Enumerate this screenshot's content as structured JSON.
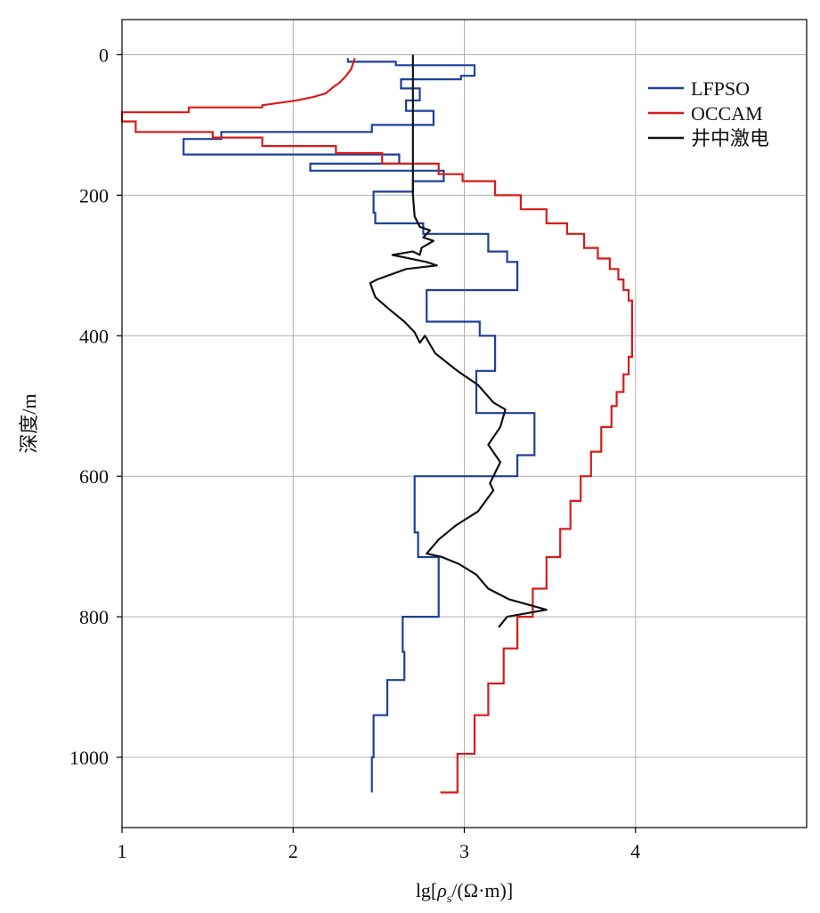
{
  "chart_data": {
    "type": "line",
    "xlabel": {
      "prefix": "lg[",
      "rho": "ρ",
      "sub": "s",
      "suffix": "/(Ω·m)]"
    },
    "ylabel": "深度/m",
    "xlim": [
      1,
      5
    ],
    "ylim": [
      1100,
      -50
    ],
    "y_inverted": true,
    "x_ticks": [
      1,
      2,
      3,
      4
    ],
    "x_tick_labels": [
      "1",
      "2",
      "3",
      "4"
    ],
    "y_ticks": [
      0,
      200,
      400,
      600,
      800,
      1000
    ],
    "y_tick_labels": [
      "0",
      "200",
      "400",
      "600",
      "800",
      "1000"
    ],
    "grid": true,
    "legend_position": "top-right",
    "series": [
      {
        "name": "LFPSO",
        "color": "#1f3f9a",
        "step": true,
        "points": [
          [
            2.32,
            5
          ],
          [
            2.32,
            10
          ],
          [
            2.6,
            10
          ],
          [
            2.6,
            15
          ],
          [
            3.06,
            15
          ],
          [
            3.06,
            30
          ],
          [
            2.98,
            30
          ],
          [
            2.98,
            35
          ],
          [
            2.63,
            35
          ],
          [
            2.63,
            48
          ],
          [
            2.74,
            48
          ],
          [
            2.74,
            65
          ],
          [
            2.66,
            65
          ],
          [
            2.66,
            80
          ],
          [
            2.82,
            80
          ],
          [
            2.82,
            100
          ],
          [
            2.46,
            100
          ],
          [
            2.46,
            110
          ],
          [
            1.58,
            110
          ],
          [
            1.58,
            120
          ],
          [
            1.36,
            120
          ],
          [
            1.36,
            142
          ],
          [
            2.62,
            142
          ],
          [
            2.62,
            155
          ],
          [
            2.1,
            155
          ],
          [
            2.1,
            165
          ],
          [
            2.88,
            165
          ],
          [
            2.88,
            180
          ],
          [
            2.7,
            180
          ],
          [
            2.7,
            195
          ],
          [
            2.47,
            195
          ],
          [
            2.47,
            225
          ],
          [
            2.48,
            225
          ],
          [
            2.48,
            240
          ],
          [
            2.76,
            240
          ],
          [
            2.76,
            255
          ],
          [
            3.14,
            255
          ],
          [
            3.14,
            280
          ],
          [
            3.25,
            280
          ],
          [
            3.25,
            295
          ],
          [
            3.31,
            295
          ],
          [
            3.31,
            335
          ],
          [
            2.78,
            335
          ],
          [
            2.78,
            380
          ],
          [
            3.09,
            380
          ],
          [
            3.09,
            400
          ],
          [
            3.18,
            400
          ],
          [
            3.18,
            450
          ],
          [
            3.07,
            450
          ],
          [
            3.07,
            510
          ],
          [
            3.41,
            510
          ],
          [
            3.41,
            570
          ],
          [
            3.31,
            570
          ],
          [
            3.31,
            600
          ],
          [
            2.71,
            600
          ],
          [
            2.71,
            680
          ],
          [
            2.73,
            680
          ],
          [
            2.73,
            715
          ],
          [
            2.85,
            715
          ],
          [
            2.85,
            800
          ],
          [
            2.64,
            800
          ],
          [
            2.64,
            850
          ],
          [
            2.65,
            850
          ],
          [
            2.65,
            890
          ],
          [
            2.55,
            890
          ],
          [
            2.55,
            940
          ],
          [
            2.47,
            940
          ],
          [
            2.47,
            1000
          ],
          [
            2.46,
            1000
          ],
          [
            2.46,
            1050
          ]
        ]
      },
      {
        "name": "OCCAM",
        "color": "#d91a1a",
        "step": true,
        "points": [
          [
            2.36,
            5
          ],
          [
            2.34,
            20
          ],
          [
            2.31,
            30
          ],
          [
            2.29,
            35
          ],
          [
            2.27,
            40
          ],
          [
            2.24,
            45
          ],
          [
            2.19,
            55
          ],
          [
            2.12,
            60
          ],
          [
            2.02,
            65
          ],
          [
            1.82,
            72
          ],
          [
            1.82,
            75
          ],
          [
            1.39,
            75
          ],
          [
            1.39,
            82
          ],
          [
            1.0,
            82
          ],
          [
            1.0,
            95
          ],
          [
            1.08,
            95
          ],
          [
            1.08,
            110
          ],
          [
            1.53,
            110
          ],
          [
            1.53,
            118
          ],
          [
            1.82,
            118
          ],
          [
            1.82,
            130
          ],
          [
            2.25,
            130
          ],
          [
            2.25,
            140
          ],
          [
            2.52,
            140
          ],
          [
            2.52,
            155
          ],
          [
            2.85,
            155
          ],
          [
            2.85,
            170
          ],
          [
            2.99,
            170
          ],
          [
            2.99,
            180
          ],
          [
            3.18,
            180
          ],
          [
            3.18,
            200
          ],
          [
            3.33,
            200
          ],
          [
            3.33,
            220
          ],
          [
            3.48,
            220
          ],
          [
            3.48,
            240
          ],
          [
            3.6,
            240
          ],
          [
            3.6,
            255
          ],
          [
            3.7,
            255
          ],
          [
            3.7,
            275
          ],
          [
            3.78,
            275
          ],
          [
            3.78,
            290
          ],
          [
            3.85,
            290
          ],
          [
            3.85,
            305
          ],
          [
            3.9,
            305
          ],
          [
            3.9,
            320
          ],
          [
            3.93,
            320
          ],
          [
            3.93,
            335
          ],
          [
            3.96,
            335
          ],
          [
            3.96,
            350
          ],
          [
            3.98,
            350
          ],
          [
            3.98,
            430
          ],
          [
            3.96,
            430
          ],
          [
            3.96,
            455
          ],
          [
            3.93,
            455
          ],
          [
            3.93,
            480
          ],
          [
            3.89,
            480
          ],
          [
            3.89,
            500
          ],
          [
            3.86,
            500
          ],
          [
            3.86,
            530
          ],
          [
            3.8,
            530
          ],
          [
            3.8,
            565
          ],
          [
            3.74,
            565
          ],
          [
            3.74,
            600
          ],
          [
            3.68,
            600
          ],
          [
            3.68,
            635
          ],
          [
            3.62,
            635
          ],
          [
            3.62,
            675
          ],
          [
            3.56,
            675
          ],
          [
            3.56,
            715
          ],
          [
            3.48,
            715
          ],
          [
            3.48,
            760
          ],
          [
            3.4,
            760
          ],
          [
            3.4,
            800
          ],
          [
            3.31,
            800
          ],
          [
            3.31,
            845
          ],
          [
            3.23,
            845
          ],
          [
            3.23,
            895
          ],
          [
            3.14,
            895
          ],
          [
            3.14,
            940
          ],
          [
            3.06,
            940
          ],
          [
            3.06,
            995
          ],
          [
            2.96,
            995
          ],
          [
            2.96,
            1050
          ],
          [
            2.86,
            1050
          ]
        ]
      },
      {
        "name": "井中激电",
        "color": "#111111",
        "step": false,
        "points": [
          [
            2.7,
            0
          ],
          [
            2.7,
            200
          ],
          [
            2.71,
            230
          ],
          [
            2.74,
            245
          ],
          [
            2.8,
            250
          ],
          [
            2.76,
            260
          ],
          [
            2.82,
            265
          ],
          [
            2.75,
            275
          ],
          [
            2.74,
            285
          ],
          [
            2.7,
            280
          ],
          [
            2.58,
            285
          ],
          [
            2.78,
            295
          ],
          [
            2.84,
            300
          ],
          [
            2.66,
            305
          ],
          [
            2.49,
            320
          ],
          [
            2.45,
            325
          ],
          [
            2.48,
            345
          ],
          [
            2.55,
            360
          ],
          [
            2.65,
            380
          ],
          [
            2.71,
            395
          ],
          [
            2.74,
            410
          ],
          [
            2.77,
            400
          ],
          [
            2.83,
            425
          ],
          [
            2.96,
            450
          ],
          [
            3.08,
            470
          ],
          [
            3.17,
            495
          ],
          [
            3.24,
            505
          ],
          [
            3.21,
            530
          ],
          [
            3.14,
            555
          ],
          [
            3.21,
            580
          ],
          [
            3.15,
            610
          ],
          [
            3.17,
            620
          ],
          [
            3.08,
            650
          ],
          [
            2.95,
            670
          ],
          [
            2.85,
            690
          ],
          [
            2.78,
            710
          ],
          [
            2.87,
            715
          ],
          [
            2.97,
            725
          ],
          [
            3.07,
            740
          ],
          [
            3.14,
            760
          ],
          [
            3.26,
            775
          ],
          [
            3.48,
            790
          ],
          [
            3.25,
            800
          ],
          [
            3.2,
            815
          ]
        ]
      }
    ]
  }
}
